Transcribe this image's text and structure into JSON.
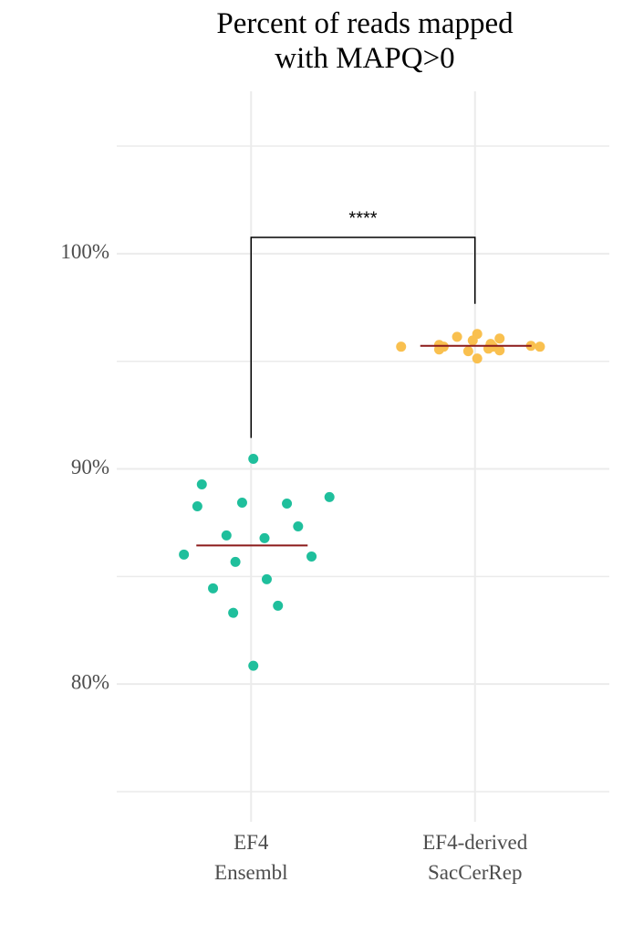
{
  "chart_data": {
    "type": "strip",
    "title": "Percent of reads mapped\nwith MAPQ>0",
    "categories": [
      "EF4\nEnsembl",
      "EF4-derived\nSacCerRep"
    ],
    "xlim": [
      0.4,
      2.6
    ],
    "ylim": [
      73.6,
      106.7
    ],
    "yticks": [
      {
        "value": 80,
        "label": "80%"
      },
      {
        "value": 90,
        "label": "90%"
      },
      {
        "value": 100,
        "label": "100%"
      }
    ],
    "minor_yticks": [
      75,
      85,
      95,
      105
    ],
    "grid": true,
    "mean_color": "#8b1a1a",
    "series": [
      {
        "color": "#1fbf9c",
        "mean": 86.44,
        "x": [
          1.01,
          0.78,
          0.76,
          0.96,
          1.16,
          1.35,
          1.21,
          0.89,
          1.06,
          0.7,
          1.27,
          0.93,
          1.07,
          0.83,
          1.12,
          0.92,
          1.01
        ],
        "values": [
          90.47,
          89.28,
          88.26,
          88.43,
          88.39,
          88.69,
          87.33,
          86.91,
          86.78,
          86.02,
          85.93,
          85.68,
          84.87,
          84.45,
          83.64,
          83.31,
          80.85
        ]
      },
      {
        "color": "#f9c04f",
        "mean": 95.72,
        "x": [
          1.67,
          1.84,
          1.86,
          1.92,
          2.01,
          1.99,
          2.11,
          2.07,
          2.08,
          1.97,
          2.11,
          2.06,
          2.01,
          2.25,
          2.29,
          1.84
        ],
        "values": [
          95.68,
          95.76,
          95.68,
          96.14,
          96.27,
          95.97,
          96.06,
          95.81,
          95.68,
          95.47,
          95.51,
          95.59,
          95.13,
          95.72,
          95.68,
          95.55
        ]
      }
    ],
    "bracket": {
      "label": "****",
      "y": 100.76,
      "ends": [
        91.44,
        97.67
      ]
    }
  }
}
